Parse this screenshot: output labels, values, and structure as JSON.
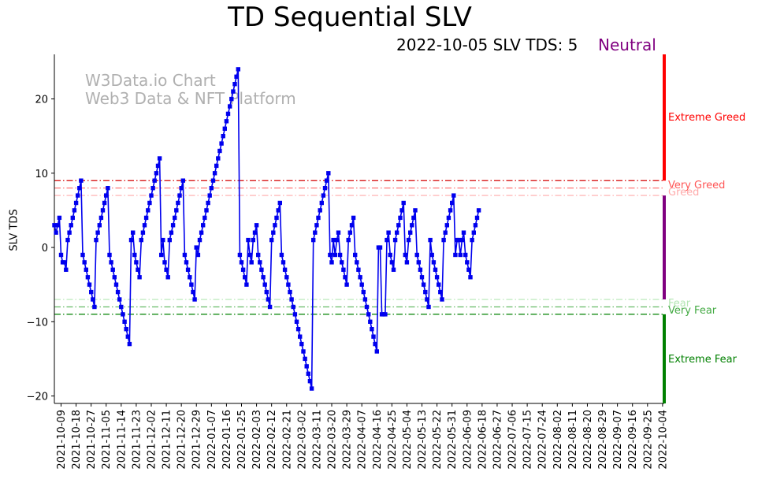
{
  "chart_data": {
    "type": "line",
    "title": "TD Sequential SLV",
    "subtitle": "2022-10-05 SLV TDS: 5",
    "status": "Neutral",
    "status_color": "#800080",
    "watermark": [
      "W3Data.io Chart",
      "Web3 Data & NFT Platform"
    ],
    "ylabel": "SLV TDS",
    "xlabel": "",
    "ylim": [
      -21,
      26
    ],
    "yticks": [
      -20,
      -10,
      0,
      10,
      20
    ],
    "x_start": "2021-10-05",
    "x_end": "2022-10-05",
    "x_ticks": [
      "2021-10-09",
      "2021-10-18",
      "2021-10-27",
      "2021-11-05",
      "2021-11-14",
      "2021-11-23",
      "2021-12-02",
      "2021-12-11",
      "2021-12-20",
      "2021-12-29",
      "2022-01-07",
      "2022-01-16",
      "2022-01-25",
      "2022-02-03",
      "2022-02-12",
      "2022-02-21",
      "2022-03-02",
      "2022-03-11",
      "2022-03-20",
      "2022-03-29",
      "2022-04-07",
      "2022-04-16",
      "2022-04-25",
      "2022-05-04",
      "2022-05-13",
      "2022-05-22",
      "2022-05-31",
      "2022-06-09",
      "2022-06-18",
      "2022-06-27",
      "2022-07-06",
      "2022-07-15",
      "2022-07-24",
      "2022-08-02",
      "2022-08-11",
      "2022-08-20",
      "2022-08-29",
      "2022-09-07",
      "2022-09-16",
      "2022-09-25",
      "2022-10-04"
    ],
    "series": [
      {
        "name": "SLV TDS",
        "color": "#0000ee",
        "start": "2021-10-05",
        "step_days": 1,
        "values": [
          3,
          2,
          3,
          4,
          -1,
          -2,
          -2,
          -3,
          1,
          2,
          3,
          4,
          5,
          6,
          7,
          8,
          9,
          -1,
          -2,
          -3,
          -4,
          -5,
          -6,
          -7,
          -8,
          1,
          2,
          3,
          4,
          5,
          6,
          7,
          8,
          -1,
          -2,
          -3,
          -4,
          -5,
          -6,
          -7,
          -8,
          -9,
          -10,
          -11,
          -12,
          -13,
          1,
          2,
          -1,
          -2,
          -3,
          -4,
          1,
          2,
          3,
          4,
          5,
          6,
          7,
          8,
          9,
          10,
          11,
          12,
          -1,
          1,
          -2,
          -3,
          -4,
          1,
          2,
          3,
          4,
          5,
          6,
          7,
          8,
          9,
          -1,
          -2,
          -3,
          -4,
          -5,
          -6,
          -7,
          0,
          -1,
          1,
          2,
          3,
          4,
          5,
          6,
          7,
          8,
          9,
          10,
          11,
          12,
          13,
          14,
          15,
          16,
          17,
          18,
          19,
          20,
          21,
          22,
          23,
          24,
          -1,
          -2,
          -3,
          -4,
          -5,
          1,
          -1,
          -2,
          1,
          2,
          3,
          -1,
          -2,
          -3,
          -4,
          -5,
          -6,
          -7,
          -8,
          1,
          2,
          3,
          4,
          5,
          6,
          -1,
          -2,
          -3,
          -4,
          -5,
          -6,
          -7,
          -8,
          -9,
          -10,
          -11,
          -12,
          -13,
          -14,
          -15,
          -16,
          -17,
          -18,
          -19,
          1,
          2,
          3,
          4,
          5,
          6,
          7,
          8,
          9,
          10,
          -1,
          -2,
          1,
          -1,
          1,
          2,
          -1,
          -2,
          -3,
          -4,
          -5,
          1,
          2,
          3,
          4,
          -1,
          -2,
          -3,
          -4,
          -5,
          -6,
          -7,
          -8,
          -9,
          -10,
          -11,
          -12,
          -13,
          -14,
          0,
          0,
          -9,
          -9,
          -9,
          1,
          2,
          -1,
          -2,
          -3,
          1,
          2,
          3,
          4,
          5,
          6,
          -1,
          -2,
          1,
          2,
          3,
          4,
          5,
          -1,
          -2,
          -3,
          -4,
          -5,
          -6,
          -7,
          -8,
          1,
          -1,
          -2,
          -3,
          -4,
          -5,
          -6,
          -7,
          1,
          2,
          3,
          4,
          5,
          6,
          7,
          -1,
          1,
          1,
          -1,
          1,
          2,
          -1,
          -2,
          -3,
          -4,
          1,
          2,
          3,
          4,
          5
        ]
      }
    ],
    "thresholds": [
      {
        "label": "Very Greed",
        "value": 9,
        "color": "#d40000",
        "text_color": "#ff5555"
      },
      {
        "label": "Greed",
        "value": 8,
        "color": "#ff7777",
        "text_color": "#ffaaaa"
      },
      {
        "label": "",
        "value": 7,
        "color": "#ffaaaa",
        "text_color": "#ffaaaa"
      },
      {
        "label": "Fear",
        "value": -7,
        "color": "#b3e6b3",
        "text_color": "#b3e6b3"
      },
      {
        "label": "",
        "value": -8,
        "color": "#66bb66",
        "text_color": "#66bb66"
      },
      {
        "label": "Very Fear",
        "value": -9,
        "color": "#008000",
        "text_color": "#44aa44"
      }
    ],
    "zones": [
      {
        "label": "Extreme Greed",
        "from": 9,
        "to": 26,
        "color": "#ff0000",
        "label_value": 17.5
      },
      {
        "label": "Neutral",
        "from": -7,
        "to": 7,
        "color": "#800080",
        "label_value": null
      },
      {
        "label": "Extreme Fear",
        "from": -21,
        "to": -9,
        "color": "#008000",
        "label_value": -15.5
      }
    ]
  }
}
